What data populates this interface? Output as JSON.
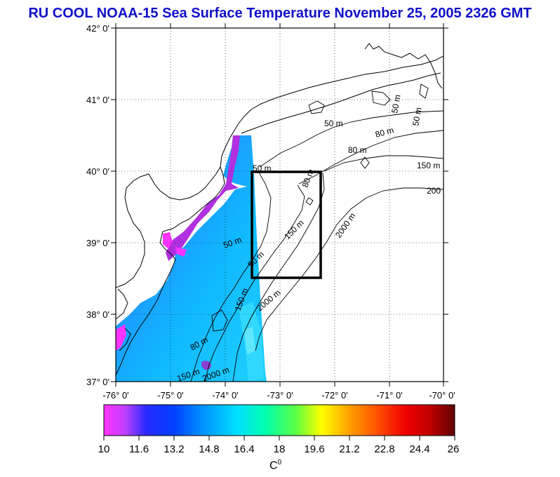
{
  "title": "RU COOL  NOAA-15 Sea Surface Temperature November 25, 2005 2326 GMT",
  "map": {
    "lat_labels": [
      "42° 0'",
      "41° 0'",
      "40° 0'",
      "39° 0'",
      "38° 0'",
      "37° 0'"
    ],
    "lon_labels": [
      "-76° 0'",
      "-75° 0'",
      "-74° 0'",
      "-73° 0'",
      "-72° 0'",
      "-71° 0'",
      "-70° 0'"
    ],
    "lat_range": [
      37,
      42
    ],
    "lon_range": [
      -76,
      -70
    ],
    "grid": "dotted",
    "study_box": {
      "lon": [
        -73.3,
        -72.0
      ],
      "lat": [
        38.5,
        40.0
      ]
    },
    "contour_labels": [
      "50 m",
      "50 m",
      "50 m",
      "50 m",
      "80 m",
      "80 m",
      "80 m",
      "80 m",
      "150 m",
      "150 m",
      "150 m",
      "150 m",
      "200",
      "2000 m",
      "2000 m",
      "2000 m",
      "50 m",
      "50 m"
    ]
  },
  "colorbar": {
    "ticks": [
      "10",
      "11.6",
      "13.2",
      "14.8",
      "16.4",
      "18",
      "19.6",
      "21.2",
      "22.8",
      "24.4",
      "26"
    ],
    "unit": "C",
    "unit_sup": "0",
    "range": [
      10,
      26
    ],
    "colors": [
      "#ff33ff",
      "#8a2be2",
      "#0000ff",
      "#0088ff",
      "#00ffff",
      "#00ff88",
      "#80ff00",
      "#ffff00",
      "#ff9900",
      "#ff2200",
      "#d00000",
      "#6e0000"
    ]
  }
}
